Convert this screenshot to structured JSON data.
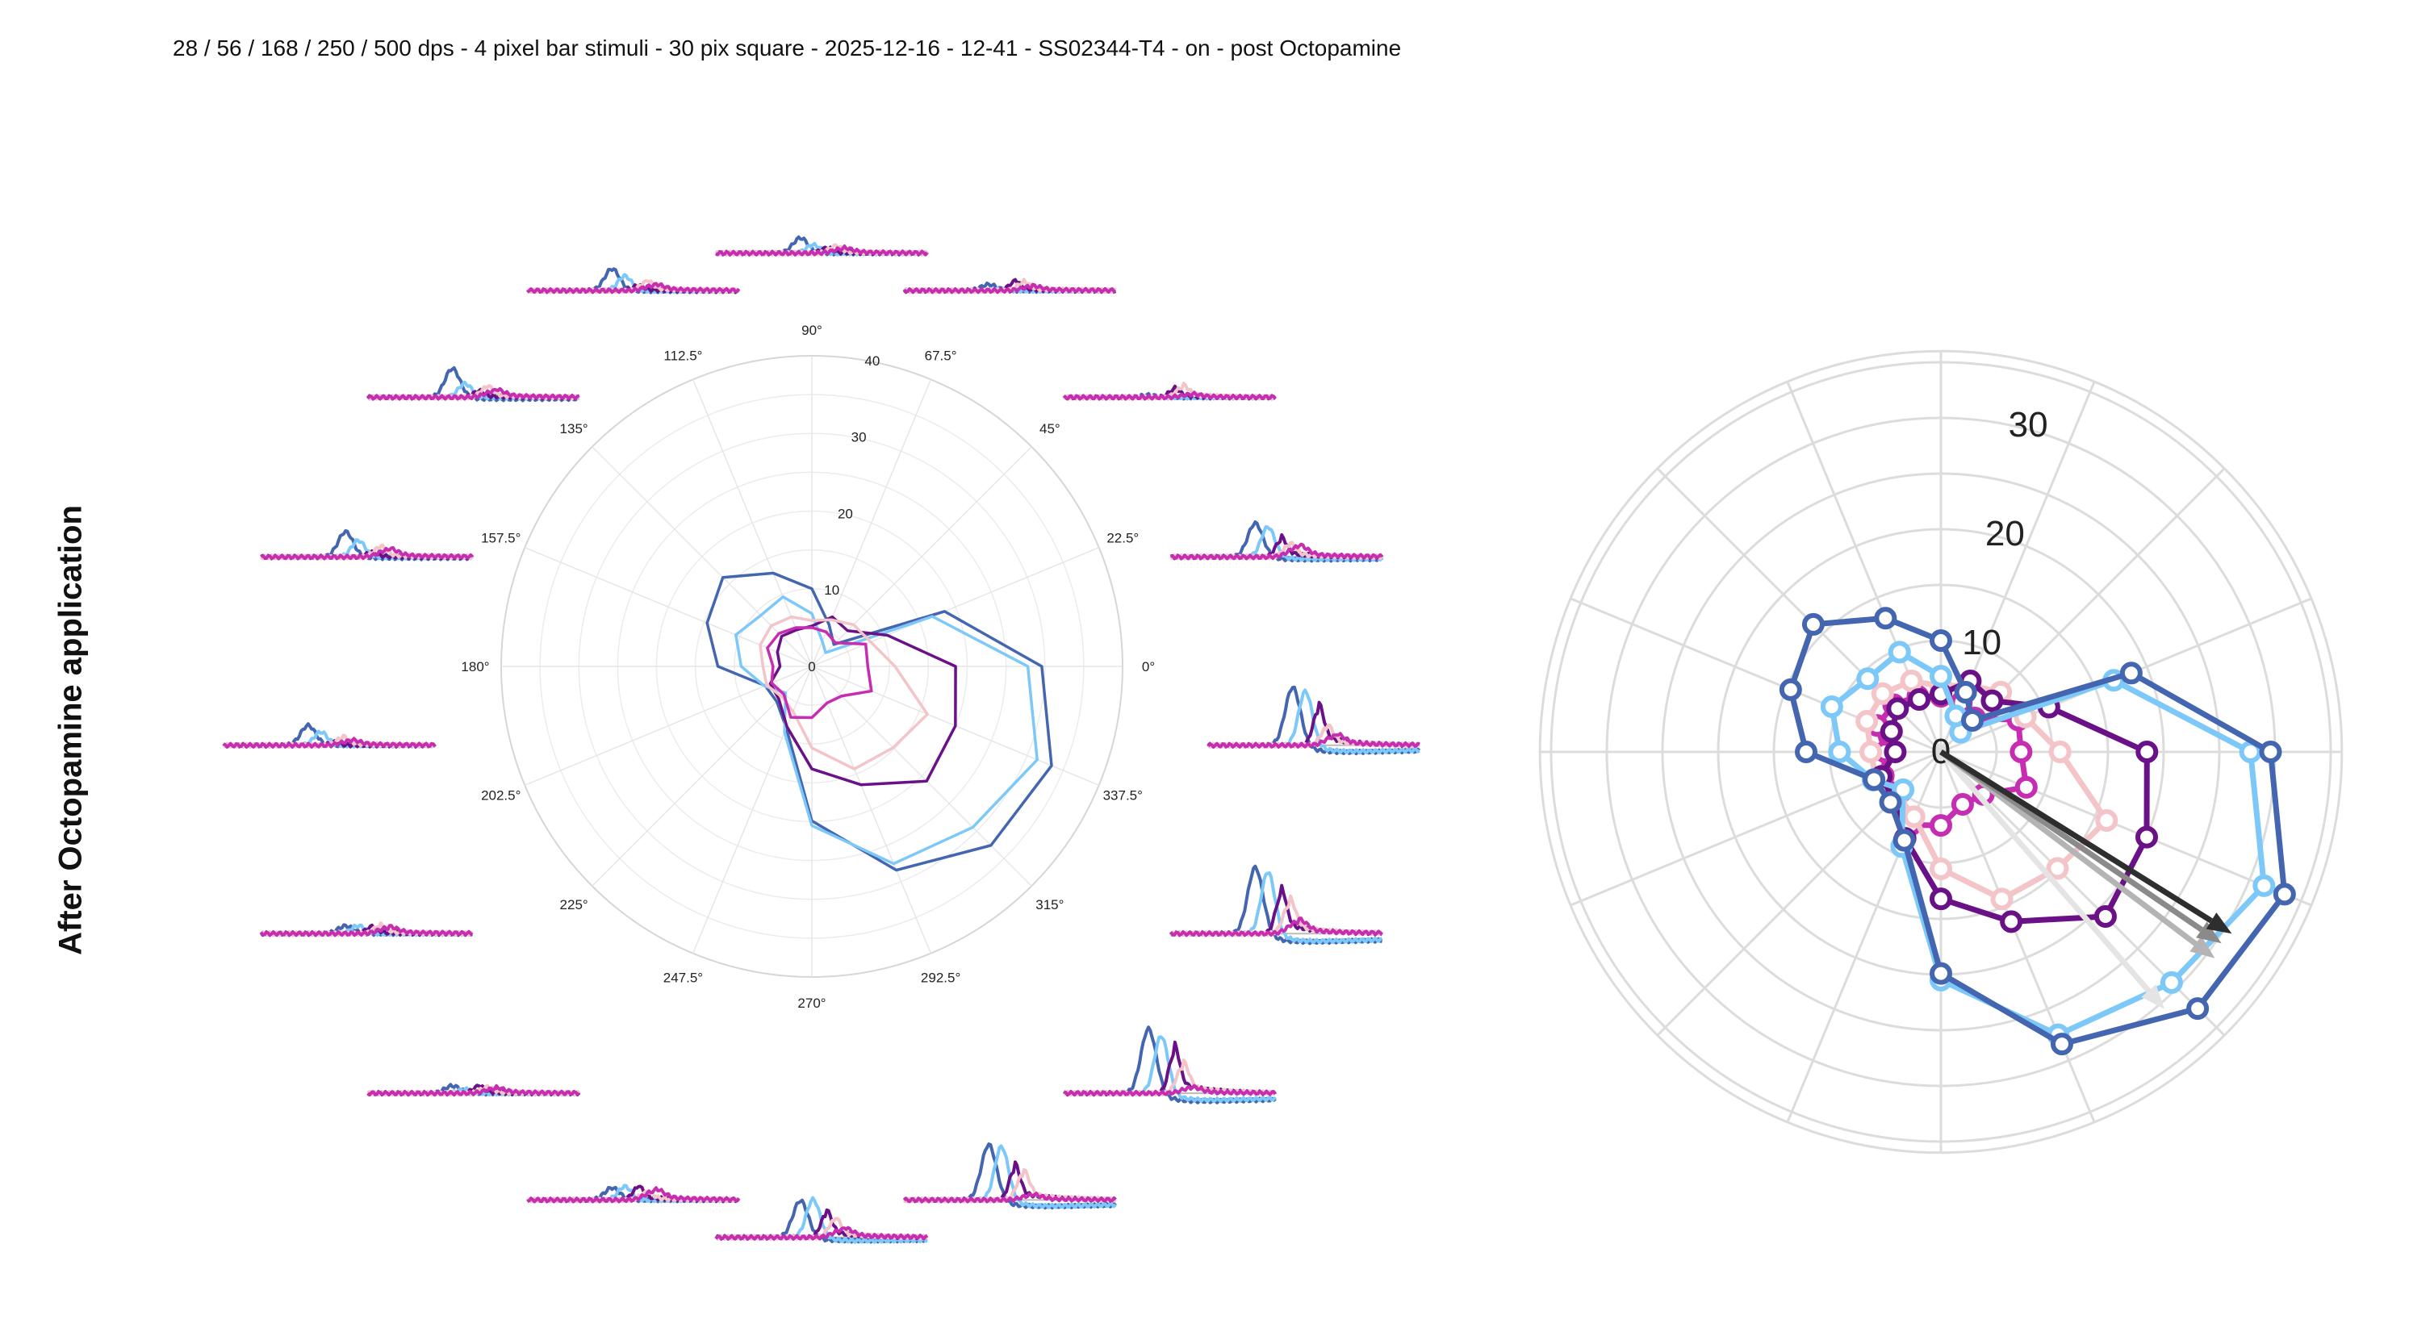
{
  "title": "28 / 56 / 168 / 250 / 500 dps - 4 pixel bar stimuli - 30 pix square - 2025-12-16 - 12-41 - SS02344-T4 - on - post Octopamine",
  "row_label": "After Octopamine application",
  "chart_data": [
    {
      "type": "line",
      "subtype": "polar",
      "angles_deg": [
        0,
        22.5,
        45,
        67.5,
        90,
        112.5,
        135,
        157.5,
        180,
        202.5,
        225,
        247.5,
        270,
        292.5,
        315,
        337.5
      ],
      "angle_labels": [
        "0°",
        "22.5°",
        "45°",
        "67.5°",
        "90°",
        "112.5°",
        "135°",
        "157.5°",
        "180°",
        "202.5°",
        "225°",
        "247.5°",
        "270°",
        "292.5°",
        "315°",
        "337.5°"
      ],
      "r_ticks": [
        0,
        10,
        20,
        30,
        40
      ],
      "r_tick_labels": [
        "0",
        "10",
        "20",
        "30",
        "40"
      ],
      "rlim": [
        0,
        40
      ],
      "grid": true,
      "series": [
        {
          "color": "#4466b0",
          "values": [
            29.6,
            18.5,
            4.0,
            5.8,
            10.0,
            13.0,
            16.2,
            14.6,
            12.1,
            6.5,
            6.4,
            8.6,
            19.9,
            28.4,
            32.6,
            33.4
          ]
        },
        {
          "color": "#7cc8f8",
          "values": [
            27.8,
            16.8,
            2.5,
            3.5,
            6.8,
            9.7,
            9.3,
            10.6,
            9.1,
            6.6,
            4.8,
            9.2,
            20.5,
            27.5,
            29.3,
            31.4
          ]
        },
        {
          "color": "#6b1187",
          "values": [
            18.5,
            10.5,
            6.5,
            6.9,
            5.2,
            5.1,
            5.5,
            4.8,
            4.1,
            5.8,
            6.0,
            8.4,
            13.2,
            16.5,
            20.9,
            20.0
          ]
        },
        {
          "color": "#f3c4c8",
          "values": [
            10.7,
            8.2,
            7.6,
            6.5,
            5.9,
            6.9,
            7.4,
            7.2,
            6.3,
            6.3,
            5.5,
            6.3,
            10.5,
            14.3,
            14.8,
            16.1
          ]
        },
        {
          "color": "#c62db0",
          "values": [
            7.2,
            7.5,
            4.3,
            4.8,
            5.0,
            5.4,
            6.0,
            6.2,
            5.0,
            5.6,
            5.1,
            7.1,
            6.6,
            5.1,
            5.4,
            8.3
          ]
        }
      ]
    },
    {
      "type": "line",
      "subtype": "polar-with-markers",
      "angles_deg": [
        0,
        22.5,
        45,
        67.5,
        90,
        112.5,
        135,
        157.5,
        180,
        202.5,
        225,
        247.5,
        270,
        292.5,
        315,
        337.5
      ],
      "r_tick_labels": [
        "0",
        "10",
        "20",
        "30"
      ],
      "r_ticks": [
        0,
        10,
        20,
        30
      ],
      "rlim": [
        0,
        36
      ],
      "grid": true,
      "series_ref": "same values and colors as chart 0",
      "vectors": [
        {
          "color": "#e4e4e4",
          "angle_deg": -49,
          "length": 30.6
        },
        {
          "color": "#b4b4b4",
          "angle_deg": -37,
          "length": 30.8
        },
        {
          "color": "#8a8a8a",
          "angle_deg": -34.3,
          "length": 30.5
        },
        {
          "color": "#2e2e2e",
          "angle_deg": -32,
          "length": 30.8
        }
      ]
    }
  ]
}
